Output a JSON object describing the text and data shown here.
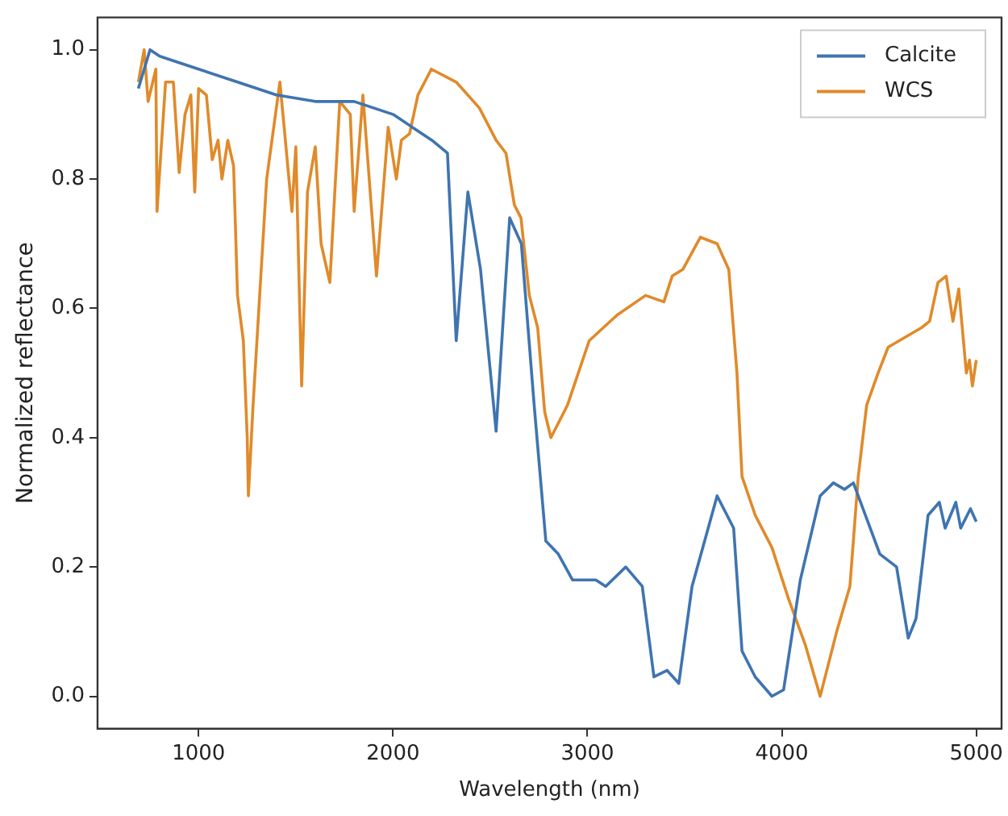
{
  "chart_data": {
    "type": "line",
    "xlabel": "Wavelength (nm)",
    "ylabel": "Normalized reflectance",
    "xlim": [
      480,
      5130
    ],
    "xticks": [
      1000,
      2000,
      3000,
      4000,
      5000
    ],
    "ylim": [
      -0.05,
      1.05
    ],
    "yticks": [
      {
        "value": 0,
        "label": "0.0"
      },
      {
        "value": 0.2,
        "label": "0.2"
      },
      {
        "value": 0.4,
        "label": "0.4"
      },
      {
        "value": 0.6,
        "label": "0.6"
      },
      {
        "value": 0.8,
        "label": "0.8"
      },
      {
        "value": 1,
        "label": "1.0"
      }
    ],
    "grid": false,
    "legend": "top right",
    "marker": "none",
    "line_style": "solid",
    "series": [
      {
        "name": "Calcite",
        "color": "#3f74b0",
        "x": [
          690,
          750,
          800,
          1000,
          1200,
          1400,
          1600,
          1800,
          2000,
          2100,
          2200,
          2280,
          2325,
          2385,
          2450,
          2530,
          2600,
          2660,
          2726,
          2786,
          2850,
          2923,
          3043,
          3094,
          3197,
          3282,
          3342,
          3410,
          3470,
          3538,
          3667,
          3752,
          3795,
          3863,
          3949,
          4009,
          4095,
          4197,
          4265,
          4322,
          4368,
          4504,
          4590,
          4650,
          4690,
          4752,
          4810,
          4840,
          4895,
          4920,
          4970,
          5000
        ],
        "values": [
          0.94,
          1.0,
          0.99,
          0.97,
          0.95,
          0.93,
          0.92,
          0.92,
          0.9,
          0.88,
          0.86,
          0.84,
          0.55,
          0.78,
          0.66,
          0.41,
          0.74,
          0.7,
          0.45,
          0.24,
          0.22,
          0.18,
          0.18,
          0.17,
          0.2,
          0.17,
          0.03,
          0.04,
          0.02,
          0.17,
          0.31,
          0.26,
          0.07,
          0.03,
          0.0,
          0.01,
          0.18,
          0.31,
          0.33,
          0.32,
          0.33,
          0.22,
          0.2,
          0.09,
          0.12,
          0.28,
          0.3,
          0.26,
          0.3,
          0.26,
          0.29,
          0.27
        ]
      },
      {
        "name": "WCS",
        "color": "#e08a2a",
        "x": [
          690,
          720,
          740,
          780,
          786,
          830,
          870,
          900,
          930,
          960,
          980,
          1000,
          1040,
          1070,
          1100,
          1120,
          1150,
          1180,
          1200,
          1230,
          1250,
          1256,
          1280,
          1300,
          1350,
          1418,
          1440,
          1480,
          1500,
          1520,
          1530,
          1560,
          1600,
          1630,
          1675,
          1726,
          1780,
          1800,
          1845,
          1915,
          1975,
          2017,
          2043,
          2085,
          2128,
          2197,
          2325,
          2444,
          2530,
          2581,
          2624,
          2658,
          2701,
          2744,
          2780,
          2812,
          2897,
          3009,
          3154,
          3299,
          3393,
          3436,
          3490,
          3581,
          3667,
          3727,
          3769,
          3795,
          3863,
          3949,
          4035,
          4120,
          4197,
          4282,
          4350,
          4393,
          4436,
          4495,
          4547,
          4718,
          4760,
          4803,
          4845,
          4880,
          4910,
          4949,
          4965,
          4980,
          5000
        ],
        "values": [
          0.95,
          1.0,
          0.92,
          0.97,
          0.75,
          0.95,
          0.95,
          0.81,
          0.9,
          0.93,
          0.78,
          0.94,
          0.93,
          0.83,
          0.86,
          0.8,
          0.86,
          0.82,
          0.62,
          0.55,
          0.4,
          0.31,
          0.45,
          0.55,
          0.8,
          0.95,
          0.88,
          0.75,
          0.85,
          0.6,
          0.48,
          0.78,
          0.85,
          0.7,
          0.64,
          0.92,
          0.9,
          0.75,
          0.93,
          0.65,
          0.88,
          0.8,
          0.86,
          0.87,
          0.93,
          0.97,
          0.95,
          0.91,
          0.86,
          0.84,
          0.76,
          0.74,
          0.62,
          0.57,
          0.44,
          0.4,
          0.45,
          0.55,
          0.59,
          0.62,
          0.61,
          0.65,
          0.66,
          0.71,
          0.7,
          0.66,
          0.5,
          0.34,
          0.28,
          0.23,
          0.15,
          0.08,
          0.0,
          0.1,
          0.17,
          0.34,
          0.45,
          0.5,
          0.54,
          0.57,
          0.58,
          0.64,
          0.65,
          0.58,
          0.63,
          0.5,
          0.52,
          0.48,
          0.52
        ]
      }
    ]
  }
}
